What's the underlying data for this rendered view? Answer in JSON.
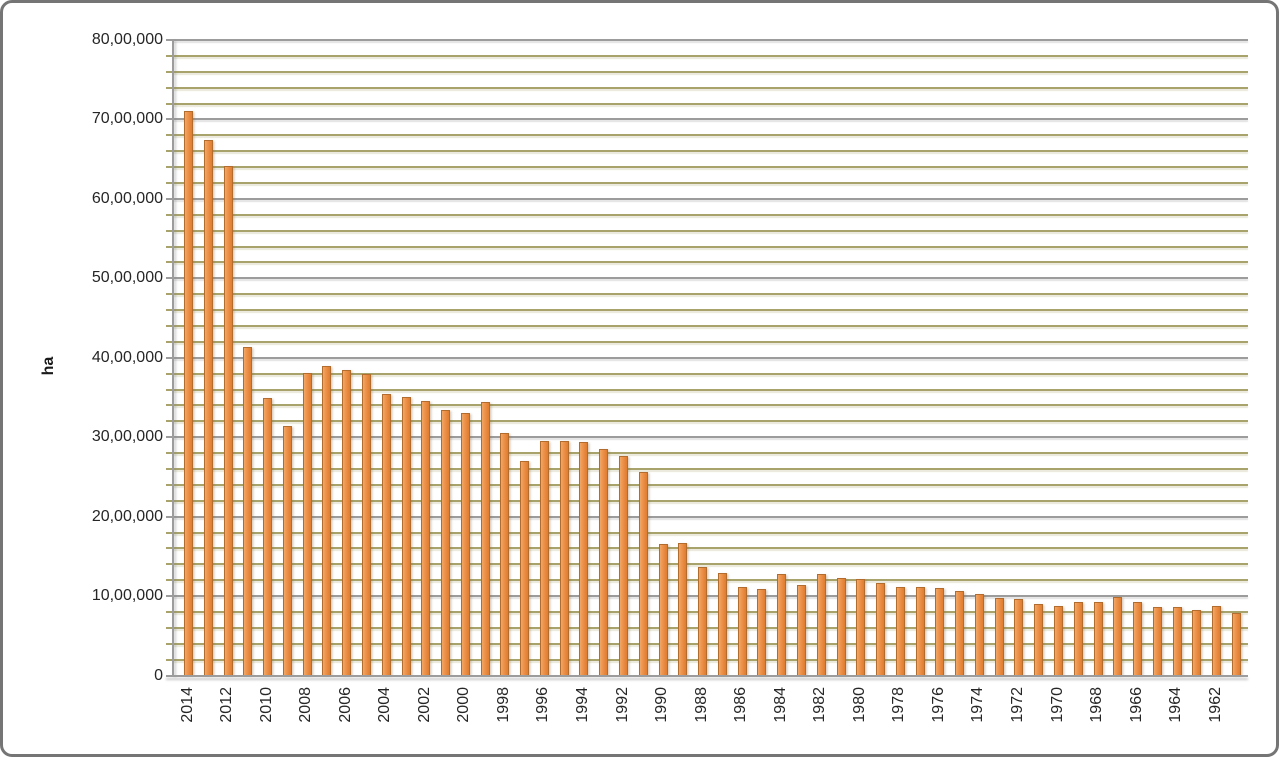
{
  "chart": {
    "y_axis_title": "ha"
  },
  "chart_data": {
    "type": "bar",
    "title": "",
    "xlabel": "",
    "ylabel": "ha",
    "legend": "none",
    "grid": "horizontal: major gray + minor olive",
    "number_format": "indian-lakh",
    "ylim": [
      0,
      8000000
    ],
    "y_major_unit": 1000000,
    "y_minor_unit": 200000,
    "y_tick_labels": [
      "0",
      "10,00,000",
      "20,00,000",
      "30,00,000",
      "40,00,000",
      "50,00,000",
      "60,00,000",
      "70,00,000",
      "80,00,000"
    ],
    "x_tick_labels": [
      "2014",
      "2012",
      "2010",
      "2008",
      "2006",
      "2004",
      "2002",
      "2000",
      "1998",
      "1996",
      "1994",
      "1992",
      "1990",
      "1988",
      "1986",
      "1984",
      "1982",
      "1980",
      "1978",
      "1976",
      "1974",
      "1972",
      "1970",
      "1968",
      "1966",
      "1964",
      "1962"
    ],
    "x": [
      2014,
      2013,
      2012,
      2011,
      2010,
      2009,
      2008,
      2007,
      2006,
      2005,
      2004,
      2003,
      2002,
      2001,
      2000,
      1999,
      1998,
      1997,
      1996,
      1995,
      1994,
      1993,
      1992,
      1991,
      1990,
      1989,
      1988,
      1987,
      1986,
      1985,
      1984,
      1983,
      1982,
      1981,
      1980,
      1979,
      1978,
      1977,
      1976,
      1975,
      1974,
      1973,
      1972,
      1971,
      1970,
      1969,
      1968,
      1967,
      1966,
      1965,
      1964,
      1963,
      1962,
      1961
    ],
    "values": [
      7100000,
      6740000,
      6410000,
      4140000,
      3490000,
      3140000,
      3810000,
      3900000,
      3850000,
      3800000,
      3540000,
      3510000,
      3460000,
      3340000,
      3300000,
      3440000,
      3050000,
      2700000,
      2950000,
      2950000,
      2940000,
      2850000,
      2760000,
      2560000,
      1660000,
      1670000,
      1370000,
      1290000,
      1110000,
      1090000,
      1280000,
      1140000,
      1280000,
      1230000,
      1210000,
      1160000,
      1120000,
      1120000,
      1100000,
      1070000,
      1030000,
      980000,
      960000,
      900000,
      870000,
      930000,
      920000,
      990000,
      920000,
      860000,
      860000,
      820000,
      880000,
      790000
    ],
    "colors": {
      "bar_fill": "#ec9049",
      "bar_fill_light": "#f2a767",
      "bar_fill_dark": "#df7c2e",
      "bar_border": "#b26c2e",
      "major_gridline": "#9c9c9c",
      "minor_gridline": "#a7a36b",
      "axis_line": "#9c9c9c",
      "text": "#262626",
      "frame_border": "#757575"
    }
  }
}
